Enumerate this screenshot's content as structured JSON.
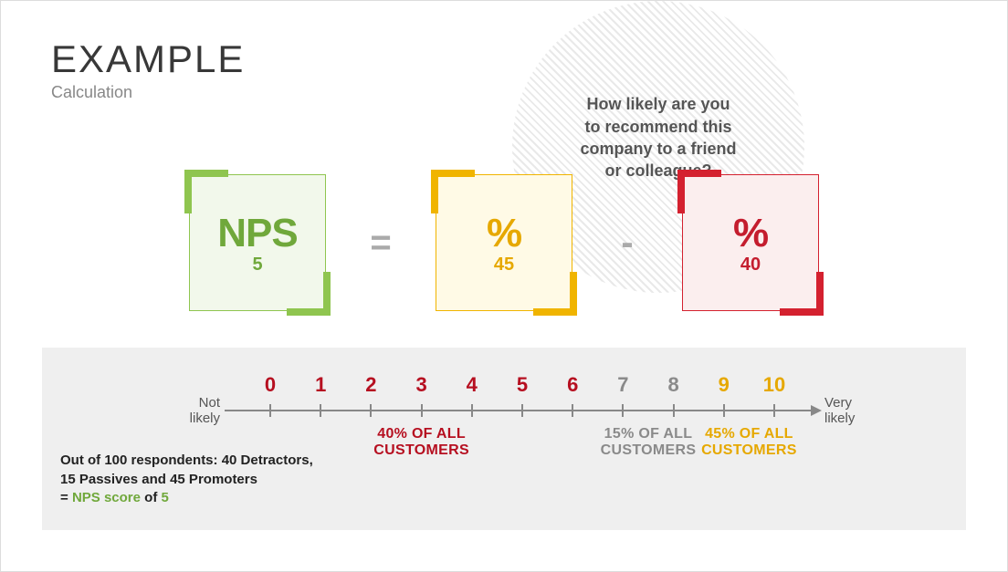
{
  "header": {
    "title": "EXAMPLE",
    "subtitle": "Calculation"
  },
  "bubble": {
    "line1": "How likely are you",
    "line2": "to recommend this",
    "line3": "company to a friend",
    "line4": "or colleague?"
  },
  "formula": {
    "nps": {
      "label": "NPS",
      "value": "5",
      "text_color": "#70a83b",
      "border_color": "#8fc54f",
      "fill_color": "#f2f8eb"
    },
    "equals": "=",
    "promoters": {
      "label": "%",
      "value": "45",
      "text_color": "#e6a800",
      "border_color": "#f0b400",
      "fill_color": "#fffae6"
    },
    "minus": "-",
    "detractors": {
      "label": "%",
      "value": "40",
      "text_color": "#c41d2e",
      "border_color": "#d4212f",
      "fill_color": "#fbeeee"
    }
  },
  "panel": {
    "left_label": "Not likely",
    "right_label": "Very likely",
    "axis_color": "#888888",
    "scale": {
      "min": 0,
      "max": 10,
      "tick_step": 1
    },
    "groups": [
      {
        "name": "detractors",
        "range": [
          0,
          6
        ],
        "color": "#b60f20",
        "percent_line1": "40% OF ALL",
        "percent_line2": "CUSTOMERS"
      },
      {
        "name": "passives",
        "range": [
          7,
          8
        ],
        "color": "#8a8a8a",
        "percent_line1": "15% OF ALL",
        "percent_line2": "CUSTOMERS"
      },
      {
        "name": "promoters",
        "range": [
          9,
          10
        ],
        "color": "#e6a800",
        "percent_line1": "45% OF ALL",
        "percent_line2": "CUSTOMERS"
      }
    ],
    "summary": {
      "line1": "Out of 100 respondents: 40 Detractors,",
      "line2": "15 Passives and 45 Promoters",
      "eq": "= ",
      "nps_label": "NPS score",
      "of": " of ",
      "nps_value": "5",
      "nps_color": "#70a83b"
    }
  }
}
